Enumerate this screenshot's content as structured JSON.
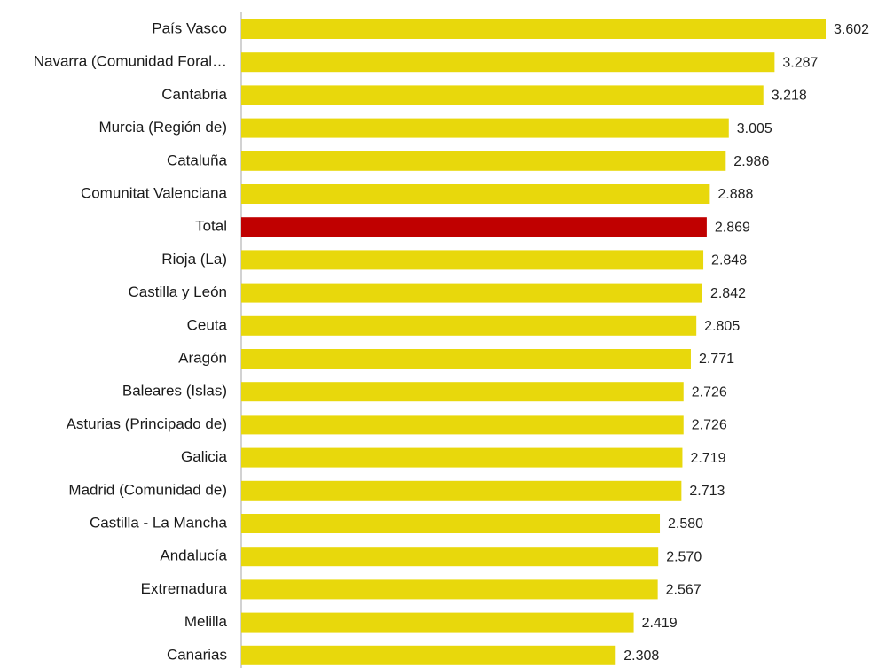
{
  "chart_data": {
    "type": "barh",
    "categories": [
      "País Vasco",
      "Navarra (Comunidad Foral…",
      "Cantabria",
      "Murcia (Región de)",
      "Cataluña",
      "Comunitat Valenciana",
      "Total",
      "Rioja (La)",
      "Castilla y León",
      "Ceuta",
      "Aragón",
      "Baleares (Islas)",
      "Asturias (Principado de)",
      "Galicia",
      "Madrid (Comunidad de)",
      "Castilla - La Mancha",
      "Andalucía",
      "Extremadura",
      "Melilla",
      "Canarias"
    ],
    "values": [
      3.602,
      3.287,
      3.218,
      3.005,
      2.986,
      2.888,
      2.869,
      2.848,
      2.842,
      2.805,
      2.771,
      2.726,
      2.726,
      2.719,
      2.713,
      2.58,
      2.57,
      2.567,
      2.419,
      2.308
    ],
    "value_labels": [
      "3.602",
      "3.287",
      "3.218",
      "3.005",
      "2.986",
      "2.888",
      "2.869",
      "2.848",
      "2.842",
      "2.805",
      "2.771",
      "2.726",
      "2.726",
      "2.719",
      "2.713",
      "2.580",
      "2.570",
      "2.567",
      "2.419",
      "2.308"
    ],
    "colors": [
      "#e8d80c",
      "#e8d80c",
      "#e8d80c",
      "#e8d80c",
      "#e8d80c",
      "#e8d80c",
      "#c00000",
      "#e8d80c",
      "#e8d80c",
      "#e8d80c",
      "#e8d80c",
      "#e8d80c",
      "#e8d80c",
      "#e8d80c",
      "#e8d80c",
      "#e8d80c",
      "#e8d80c",
      "#e8d80c",
      "#e8d80c",
      "#e8d80c"
    ]
  }
}
